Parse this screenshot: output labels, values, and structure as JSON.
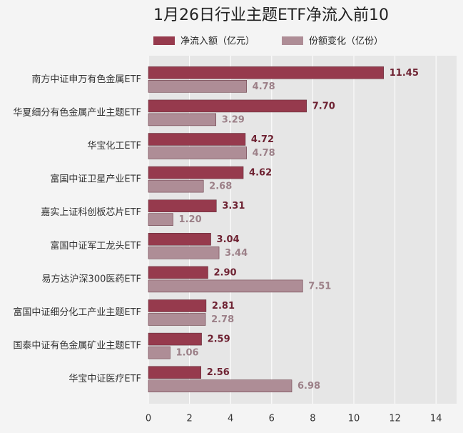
{
  "chart_data": {
    "type": "bar",
    "orientation": "horizontal",
    "title": "1月26日行业主题ETF净流入前10",
    "categories": [
      "南方中证申万有色金属ETF",
      "华夏细分有色金属产业主题ETF",
      "华宝化工ETF",
      "富国中证卫星产业ETF",
      "嘉实上证科创板芯片ETF",
      "富国中证军工龙头ETF",
      "易方达沪深300医药ETF",
      "富国中证细分化工产业主题ETF",
      "国泰中证有色金属矿业主题ETF",
      "华宝中证医疗ETF"
    ],
    "series": [
      {
        "name": "净流入额（亿元）",
        "color": "#963a4d",
        "values": [
          11.45,
          7.7,
          4.72,
          4.62,
          3.31,
          3.04,
          2.9,
          2.81,
          2.59,
          2.56
        ],
        "value_labels": [
          "11.45",
          "7.70",
          "4.72",
          "4.62",
          "3.31",
          "3.04",
          "2.90",
          "2.81",
          "2.59",
          "2.56"
        ]
      },
      {
        "name": "份额变化（亿份）",
        "color": "#ae8d96",
        "values": [
          4.78,
          3.29,
          4.78,
          2.68,
          1.2,
          3.44,
          7.51,
          2.78,
          1.06,
          6.98
        ],
        "value_labels": [
          "4.78",
          "3.29",
          "4.78",
          "2.68",
          "1.20",
          "3.44",
          "7.51",
          "2.78",
          "1.06",
          "6.98"
        ]
      }
    ],
    "xlim": [
      0,
      15
    ],
    "xticks": [
      0,
      2,
      4,
      6,
      8,
      10,
      12,
      14
    ],
    "grid": true
  }
}
